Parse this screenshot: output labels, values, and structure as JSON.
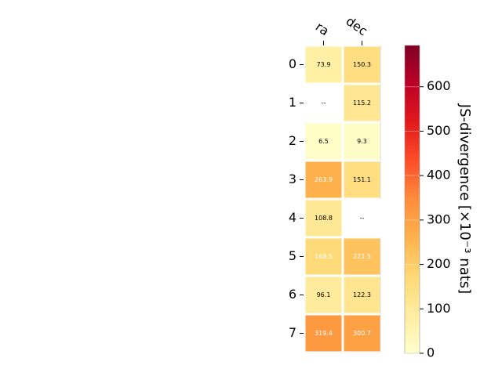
{
  "chart_data": {
    "type": "heatmap",
    "title": "",
    "x_categories": [
      "ra",
      "dec"
    ],
    "y_categories": [
      "0",
      "1",
      "2",
      "3",
      "4",
      "5",
      "6",
      "7"
    ],
    "values": [
      [
        73.9,
        150.3
      ],
      [
        null,
        115.2
      ],
      [
        6.5,
        9.3
      ],
      [
        263.9,
        151.1
      ],
      [
        108.8,
        null
      ],
      [
        168.5,
        221.5
      ],
      [
        96.1,
        122.3
      ],
      [
        319.4,
        300.7
      ]
    ],
    "cell_labels": [
      [
        "73.9",
        "150.3"
      ],
      [
        "--",
        "115.2"
      ],
      [
        "6.5",
        "9.3"
      ],
      [
        "263.9",
        "151.1"
      ],
      [
        "108.8",
        "--"
      ],
      [
        "168.5",
        "221.5"
      ],
      [
        "96.1",
        "122.3"
      ],
      [
        "319.4",
        "300.7"
      ]
    ],
    "missing_label": "--",
    "colorbar": {
      "label": "JS-divergence [×10⁻³ nats]",
      "range": [
        0,
        693
      ],
      "ticks": [
        "0",
        "100",
        "200",
        "300",
        "400",
        "500",
        "600"
      ],
      "colormap": "YlOrRd"
    }
  }
}
